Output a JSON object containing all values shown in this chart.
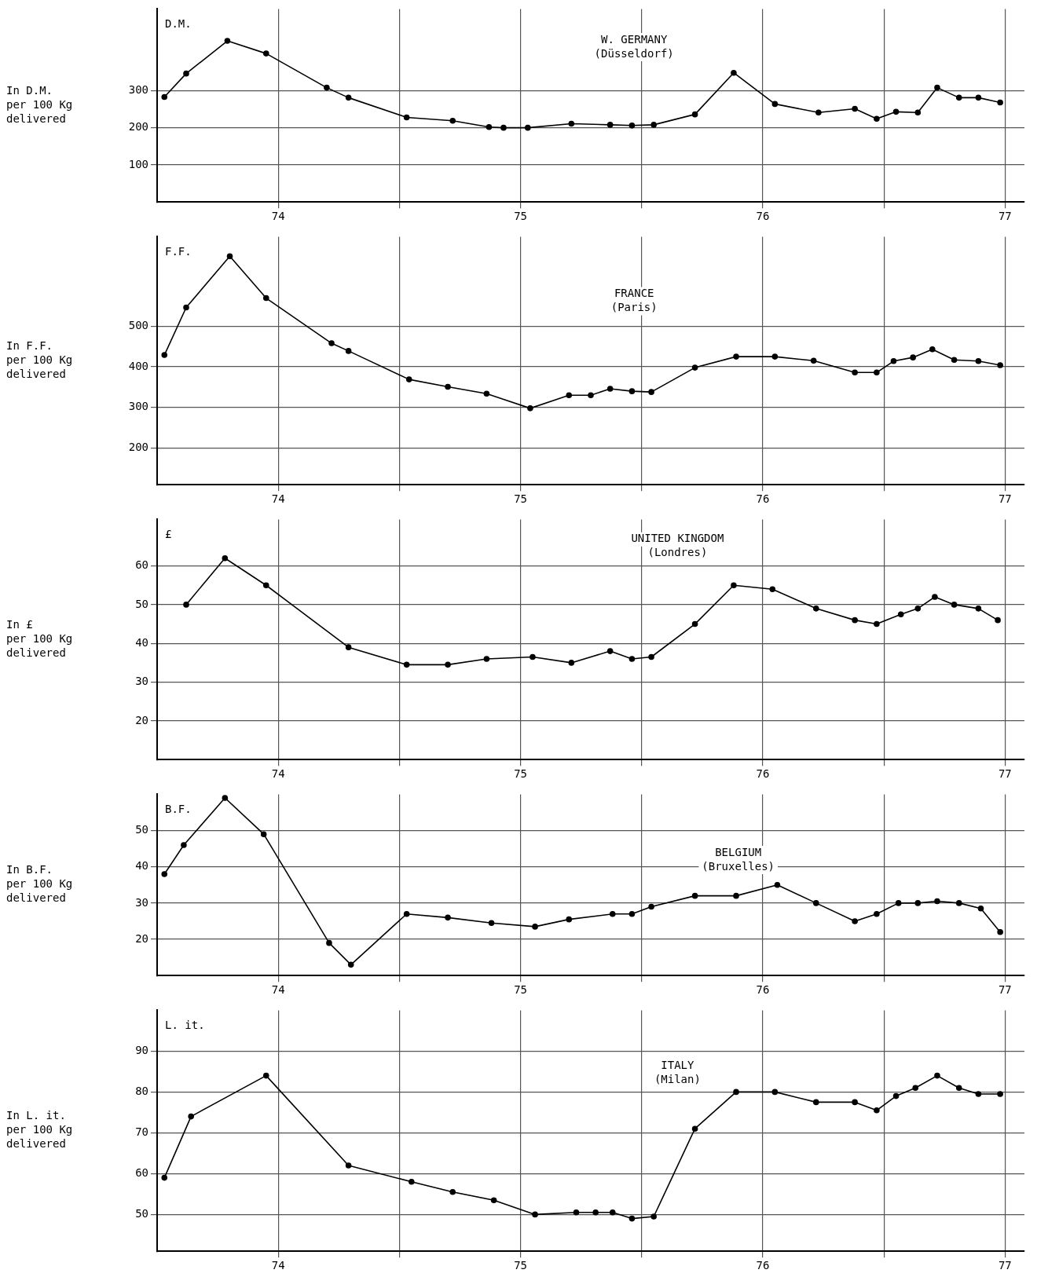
{
  "chart_data": [
    {
      "type": "line",
      "title": "W. GERMANY",
      "subtitle": "(Düsseldorf)",
      "ylabel": "In D.M.\nper 100 Kg\ndelivered",
      "annotations": [
        "D.M."
      ],
      "color": "#000000",
      "marker": "circle",
      "line_style": "solid",
      "grid": true,
      "x": [
        73.53,
        73.62,
        73.79,
        73.95,
        74.2,
        74.29,
        74.53,
        74.72,
        74.87,
        74.93,
        75.03,
        75.21,
        75.37,
        75.46,
        75.55,
        75.72,
        75.88,
        76.05,
        76.23,
        76.38,
        76.47,
        76.55,
        76.64,
        76.72,
        76.81,
        76.89,
        76.98
      ],
      "values": [
        283,
        346,
        434,
        400,
        308,
        281,
        228,
        219,
        202,
        200,
        200,
        211,
        208,
        206,
        208,
        236,
        348,
        264,
        241,
        251,
        224,
        243,
        241,
        308,
        281,
        281,
        268
      ],
      "xlim": [
        73.5,
        77.08
      ],
      "xticks": [
        74,
        {
          "value": 74.5,
          "label": null
        },
        75,
        {
          "value": 75.5,
          "label": null
        },
        76,
        {
          "value": 76.5,
          "label": null
        },
        77
      ],
      "ylim": [
        0,
        520
      ],
      "yticks": [
        100,
        200,
        300
      ]
    },
    {
      "type": "line",
      "title": "FRANCE",
      "subtitle": "(Paris)",
      "ylabel": "In F.F.\nper 100 Kg\ndelivered",
      "annotations": [
        "F.F."
      ],
      "color": "#000000",
      "marker": "circle",
      "line_style": "solid",
      "grid": true,
      "x": [
        73.53,
        73.62,
        73.8,
        73.95,
        74.22,
        74.29,
        74.54,
        74.7,
        74.86,
        75.04,
        75.2,
        75.29,
        75.37,
        75.46,
        75.54,
        75.72,
        75.89,
        76.05,
        76.21,
        76.38,
        76.47,
        76.54,
        76.62,
        76.7,
        76.79,
        76.89,
        76.98
      ],
      "values": [
        429,
        546,
        672,
        569,
        458,
        439,
        369,
        351,
        334,
        298,
        330,
        330,
        346,
        340,
        338,
        398,
        425,
        425,
        415,
        386,
        386,
        414,
        423,
        443,
        417,
        414,
        404
      ],
      "xlim": [
        73.5,
        77.08
      ],
      "xticks": [
        74,
        {
          "value": 74.5,
          "label": null
        },
        75,
        {
          "value": 75.5,
          "label": null
        },
        76,
        {
          "value": 76.5,
          "label": null
        },
        77
      ],
      "ylim": [
        110,
        720
      ],
      "yticks": [
        200,
        300,
        400,
        500
      ]
    },
    {
      "type": "line",
      "title": "UNITED KINGDOM",
      "subtitle": "(Londres)",
      "ylabel": "In £\nper 100 Kg\ndelivered",
      "annotations": [
        "£"
      ],
      "color": "#000000",
      "marker": "circle",
      "line_style": "solid",
      "grid": true,
      "x": [
        73.62,
        73.78,
        73.95,
        74.29,
        74.53,
        74.7,
        74.86,
        75.05,
        75.21,
        75.37,
        75.46,
        75.54,
        75.72,
        75.88,
        76.04,
        76.22,
        76.38,
        76.47,
        76.57,
        76.64,
        76.71,
        76.79,
        76.89,
        76.97
      ],
      "values": [
        50,
        62,
        55,
        39,
        34.5,
        34.5,
        36,
        36.5,
        35,
        38,
        36,
        36.5,
        45,
        55,
        54,
        49,
        46,
        45,
        47.5,
        49,
        52,
        50,
        49,
        46
      ],
      "xlim": [
        73.5,
        77.08
      ],
      "xticks": [
        74,
        {
          "value": 74.5,
          "label": null
        },
        75,
        {
          "value": 75.5,
          "label": null
        },
        76,
        {
          "value": 76.5,
          "label": null
        },
        77
      ],
      "ylim": [
        10,
        72
      ],
      "yticks": [
        20,
        30,
        40,
        50,
        60
      ]
    },
    {
      "type": "line",
      "title": "BELGIUM",
      "subtitle": "(Bruxelles)",
      "ylabel": "In B.F.\nper 100 Kg\ndelivered",
      "annotations": [
        "B.F."
      ],
      "color": "#000000",
      "marker": "circle",
      "line_style": "solid",
      "grid": true,
      "x": [
        73.53,
        73.61,
        73.78,
        73.94,
        74.21,
        74.3,
        74.53,
        74.7,
        74.88,
        75.06,
        75.2,
        75.38,
        75.46,
        75.54,
        75.72,
        75.89,
        76.06,
        76.22,
        76.38,
        76.47,
        76.56,
        76.64,
        76.72,
        76.81,
        76.9,
        76.98
      ],
      "values": [
        38,
        46,
        59,
        49,
        19,
        13,
        27,
        26,
        24.5,
        23.5,
        25.5,
        27,
        27,
        29,
        32,
        32,
        35,
        30,
        25,
        27,
        30,
        30,
        30.5,
        30,
        28.5,
        22
      ],
      "xlim": [
        73.5,
        77.08
      ],
      "xticks": [
        74,
        {
          "value": 74.5,
          "label": null
        },
        75,
        {
          "value": 75.5,
          "label": null
        },
        76,
        {
          "value": 76.5,
          "label": null
        },
        77
      ],
      "ylim": [
        10,
        60
      ],
      "yticks": [
        20,
        30,
        40,
        50
      ]
    },
    {
      "type": "line",
      "title": "ITALY",
      "subtitle": "(Milan)",
      "ylabel": "In L. it.\nper 100 Kg\ndelivered",
      "annotations": [
        "L. it."
      ],
      "color": "#000000",
      "marker": "circle",
      "line_style": "solid",
      "grid": true,
      "x": [
        73.53,
        73.64,
        73.95,
        74.29,
        74.55,
        74.72,
        74.89,
        75.06,
        75.23,
        75.31,
        75.38,
        75.46,
        75.55,
        75.72,
        75.89,
        76.05,
        76.22,
        76.38,
        76.47,
        76.55,
        76.63,
        76.72,
        76.81,
        76.89,
        76.98
      ],
      "values": [
        59,
        74,
        84,
        62,
        58,
        55.5,
        53.5,
        50,
        50.5,
        50.5,
        50.5,
        49,
        49.5,
        71,
        80,
        80,
        77.5,
        77.5,
        75.5,
        79,
        81,
        84,
        81,
        79.5,
        79.5
      ],
      "xlim": [
        73.5,
        77.08
      ],
      "xticks": [
        74,
        {
          "value": 74.5,
          "label": null
        },
        75,
        {
          "value": 75.5,
          "label": null
        },
        76,
        {
          "value": 76.5,
          "label": null
        },
        77
      ],
      "ylim": [
        41,
        100
      ],
      "yticks": [
        50,
        60,
        70,
        80,
        90
      ]
    }
  ]
}
